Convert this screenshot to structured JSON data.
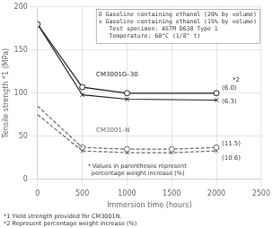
{
  "chart_data": {
    "type": "line",
    "xlabel": "Immersion time (hours)",
    "ylabel": "Tensile strength *1 (MPa)",
    "xlim": [
      0,
      2500
    ],
    "ylim": [
      0,
      200
    ],
    "xticks": [
      0,
      500,
      1000,
      1500,
      2000,
      2500
    ],
    "yticks": [
      0,
      50,
      100,
      150,
      200
    ],
    "grid": true,
    "series": [
      {
        "x": [
          0,
          500,
          1000,
          2000
        ],
        "values": [
          180,
          107,
          100,
          100
        ],
        "color": "#1a1a1a",
        "marker": "circle",
        "line_style": "solid"
      },
      {
        "x": [
          0,
          500
        ],
        "values": [
          180,
          98
        ],
        "color": "#1a1a1a",
        "marker": "none",
        "line_style": "solid"
      },
      {
        "x": [
          500,
          1000,
          2000
        ],
        "values": [
          98,
          93,
          92
        ],
        "color": "#1a1a1a",
        "marker": "x",
        "line_style": "solid"
      },
      {
        "x": [
          0,
          500
        ],
        "values": [
          85,
          37
        ],
        "color": "#666666",
        "marker": "none",
        "line_style": "dashed"
      },
      {
        "x": [
          500,
          1000,
          1500,
          2000
        ],
        "values": [
          37,
          35,
          35,
          37
        ],
        "color": "#666666",
        "marker": "circle",
        "line_style": "dashed"
      },
      {
        "x": [
          0,
          500
        ],
        "values": [
          75,
          33
        ],
        "color": "#666666",
        "marker": "none",
        "line_style": "dashed"
      },
      {
        "x": [
          500,
          1000,
          1500,
          2000
        ],
        "values": [
          33,
          31,
          31,
          33
        ],
        "color": "#666666",
        "marker": "x",
        "line_style": "dashed"
      }
    ],
    "annotations": [
      {
        "text": "CM3001G–30",
        "x": 655,
        "y": 120,
        "color": "#1a1a1a"
      },
      {
        "text": "CM3001–N",
        "x": 655,
        "y": 55,
        "color": "#666666"
      },
      {
        "text": "(6.0)",
        "x": 2060,
        "y": 104
      },
      {
        "text": "(6.3)",
        "x": 2060,
        "y": 88
      },
      {
        "text": "(11.5)",
        "x": 2060,
        "y": 39
      },
      {
        "text": "(10.6)",
        "x": 2060,
        "y": 23
      },
      {
        "text": "*2",
        "x": 2180,
        "y": 113
      },
      {
        "text": "* Values in parentheses represent\n  percentage weight increase (%)",
        "x": 560,
        "y": 3
      }
    ],
    "legend_text": [
      "O Gasoline containing ethanol (20% by volume)",
      "x Gasoline containing ethanol (15% by volume)",
      "   Test specimen: ASTM D638 Type 1",
      "   Temperature: 60°C (1/8\" t)"
    ],
    "footnotes": [
      "*1 Yield strength provided for CM3001N.",
      "*2 Represent percentage weight increase (%)"
    ]
  }
}
